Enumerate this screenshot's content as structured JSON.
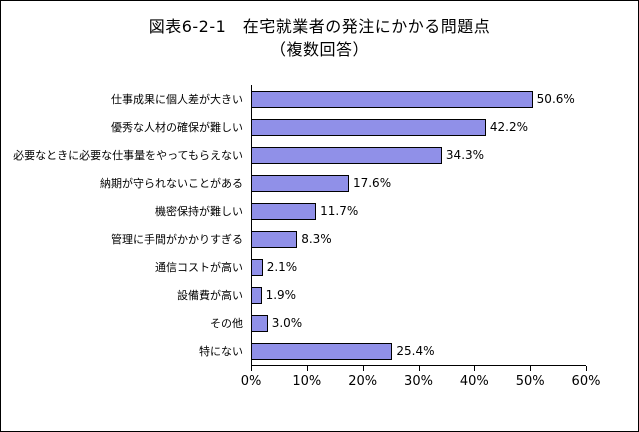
{
  "title": {
    "line1": "図表6-2-1　在宅就業者の発注にかかる問題点",
    "line2": "（複数回答）"
  },
  "colors": {
    "bar_fill": "#9090E8",
    "bar_border": "#000000"
  },
  "chart_data": {
    "type": "bar",
    "orientation": "horizontal",
    "title": "図表6-2-1　在宅就業者の発注にかかる問題点（複数回答）",
    "categories": [
      "仕事成果に個人差が大きい",
      "優秀な人材の確保が難しい",
      "必要なときに必要な仕事量をやってもらえない",
      "納期が守られないことがある",
      "機密保持が難しい",
      "管理に手間がかかりすぎる",
      "通信コストが高い",
      "設備費が高い",
      "その他",
      "特にない"
    ],
    "values": [
      50.6,
      42.2,
      34.3,
      17.6,
      11.7,
      8.3,
      2.1,
      1.9,
      3.0,
      25.4
    ],
    "value_labels": [
      "50.6%",
      "42.2%",
      "34.3%",
      "17.6%",
      "11.7%",
      "8.3%",
      "2.1%",
      "1.9%",
      "3.0%",
      "25.4%"
    ],
    "xlabel": "",
    "ylabel": "",
    "xlim": [
      0,
      60
    ],
    "x_ticks": [
      "0%",
      "10%",
      "20%",
      "30%",
      "40%",
      "50%",
      "60%"
    ],
    "grid": false,
    "legend": "none"
  }
}
